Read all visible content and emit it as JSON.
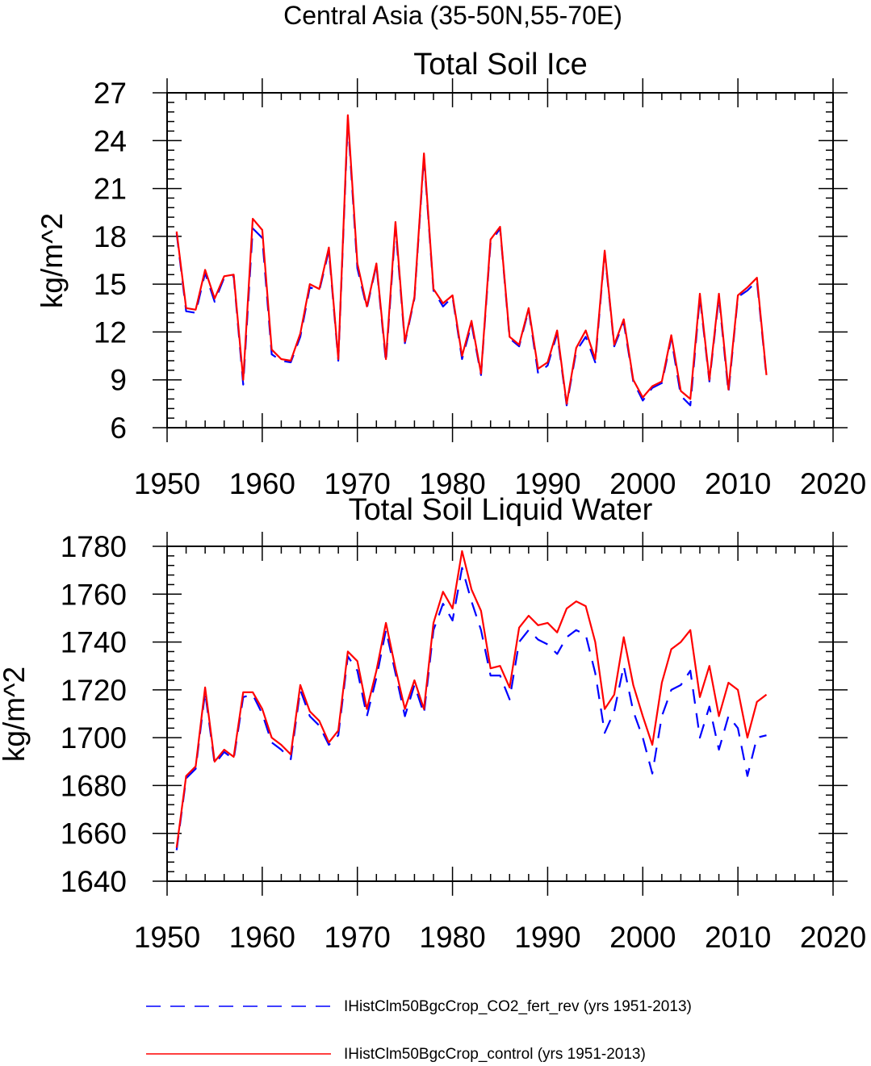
{
  "figure": {
    "title": "Central Asia (35-50N,55-70E)"
  },
  "legend": [
    {
      "label": "IHistClm50BgcCrop_CO2_fert_rev (yrs 1951-2013)",
      "color": "#0000ff",
      "dash": "dashed"
    },
    {
      "label": "IHistClm50BgcCrop_control (yrs 1951-2013)",
      "color": "#ff0000",
      "dash": "solid"
    }
  ],
  "chart_data": [
    {
      "type": "line",
      "title": "Total Soil Ice",
      "xlabel": "",
      "ylabel": "kg/m^2",
      "xlim": [
        1950,
        2020
      ],
      "ylim": [
        6,
        27
      ],
      "xticks": [
        1950,
        1960,
        1970,
        1980,
        1990,
        2000,
        2010,
        2020
      ],
      "yticks": [
        6,
        9,
        12,
        15,
        18,
        21,
        24,
        27
      ],
      "x": [
        1951,
        1952,
        1953,
        1954,
        1955,
        1956,
        1957,
        1958,
        1959,
        1960,
        1961,
        1962,
        1963,
        1964,
        1965,
        1966,
        1967,
        1968,
        1969,
        1970,
        1971,
        1972,
        1973,
        1974,
        1975,
        1976,
        1977,
        1978,
        1979,
        1980,
        1981,
        1982,
        1983,
        1984,
        1985,
        1986,
        1987,
        1988,
        1989,
        1990,
        1991,
        1992,
        1993,
        1994,
        1995,
        1996,
        1997,
        1998,
        1999,
        2000,
        2001,
        2002,
        2003,
        2004,
        2005,
        2006,
        2007,
        2008,
        2009,
        2010,
        2011,
        2012,
        2013
      ],
      "series": [
        {
          "name": "IHistClm50BgcCrop_CO2_fert_rev (yrs 1951-2013)",
          "color": "#0000ff",
          "dash": "dashed",
          "values": [
            18.2,
            13.3,
            13.2,
            15.7,
            13.9,
            15.4,
            15.5,
            8.7,
            18.5,
            17.9,
            10.6,
            10.2,
            10.1,
            11.7,
            14.8,
            14.6,
            17.1,
            10.2,
            25.3,
            16.0,
            13.5,
            16.2,
            10.1,
            18.6,
            11.3,
            14.1,
            23.0,
            14.6,
            13.6,
            14.2,
            10.3,
            12.5,
            9.3,
            17.6,
            18.5,
            11.6,
            11.1,
            13.4,
            9.4,
            9.9,
            11.9,
            7.4,
            10.8,
            11.7,
            10.1,
            17.0,
            11.1,
            12.6,
            8.9,
            7.7,
            8.5,
            8.8,
            11.6,
            8.0,
            7.4,
            14.2,
            8.9,
            14.2,
            8.2,
            14.2,
            14.6,
            15.2,
            9.2
          ]
        },
        {
          "name": "IHistClm50BgcCrop_control (yrs 1951-2013)",
          "color": "#ff0000",
          "dash": "solid",
          "values": [
            18.3,
            13.5,
            13.4,
            15.9,
            14.1,
            15.5,
            15.6,
            9.0,
            19.1,
            18.4,
            10.9,
            10.3,
            10.2,
            11.9,
            15.0,
            14.7,
            17.3,
            10.3,
            25.6,
            16.3,
            13.6,
            16.3,
            10.3,
            18.9,
            11.4,
            14.2,
            23.2,
            14.7,
            13.8,
            14.3,
            10.5,
            12.7,
            9.4,
            17.8,
            18.6,
            11.7,
            11.2,
            13.5,
            9.7,
            10.1,
            12.1,
            7.5,
            11.0,
            12.1,
            10.3,
            17.1,
            11.2,
            12.8,
            9.0,
            7.9,
            8.6,
            8.9,
            11.8,
            8.3,
            7.8,
            14.4,
            9.0,
            14.4,
            8.4,
            14.3,
            14.8,
            15.4,
            9.3
          ]
        }
      ]
    },
    {
      "type": "line",
      "title": "Total Soil Liquid Water",
      "xlabel": "",
      "ylabel": "kg/m^2",
      "xlim": [
        1950,
        2020
      ],
      "ylim": [
        1640,
        1780
      ],
      "xticks": [
        1950,
        1960,
        1970,
        1980,
        1990,
        2000,
        2010,
        2020
      ],
      "yticks": [
        1640,
        1660,
        1680,
        1700,
        1720,
        1740,
        1760,
        1780
      ],
      "x": [
        1951,
        1952,
        1953,
        1954,
        1955,
        1956,
        1957,
        1958,
        1959,
        1960,
        1961,
        1962,
        1963,
        1964,
        1965,
        1966,
        1967,
        1968,
        1969,
        1970,
        1971,
        1972,
        1973,
        1974,
        1975,
        1976,
        1977,
        1978,
        1979,
        1980,
        1981,
        1982,
        1983,
        1984,
        1985,
        1986,
        1987,
        1988,
        1989,
        1990,
        1991,
        1992,
        1993,
        1994,
        1995,
        1996,
        1997,
        1998,
        1999,
        2000,
        2001,
        2002,
        2003,
        2004,
        2005,
        2006,
        2007,
        2008,
        2009,
        2010,
        2011,
        2012,
        2013
      ],
      "series": [
        {
          "name": "IHistClm50BgcCrop_CO2_fert_rev (yrs 1951-2013)",
          "color": "#0000ff",
          "dash": "dashed",
          "values": [
            1653,
            1683,
            1687,
            1719,
            1689,
            1694,
            1691,
            1717,
            1718,
            1710,
            1698,
            1695,
            1691,
            1720,
            1709,
            1705,
            1697,
            1701,
            1734,
            1728,
            1709,
            1725,
            1745,
            1727,
            1709,
            1722,
            1710,
            1745,
            1756,
            1749,
            1771,
            1757,
            1745,
            1726,
            1726,
            1716,
            1740,
            1745,
            1741,
            1739,
            1735,
            1742,
            1745,
            1743,
            1727,
            1702,
            1711,
            1730,
            1711,
            1700,
            1685,
            1709,
            1720,
            1722,
            1728,
            1700,
            1713,
            1695,
            1709,
            1704,
            1684,
            1700,
            1701
          ]
        },
        {
          "name": "IHistClm50BgcCrop_control (yrs 1951-2013)",
          "color": "#ff0000",
          "dash": "solid",
          "values": [
            1654,
            1684,
            1688,
            1721,
            1690,
            1695,
            1692,
            1719,
            1719,
            1712,
            1700,
            1697,
            1693,
            1722,
            1711,
            1707,
            1698,
            1703,
            1736,
            1732,
            1712,
            1728,
            1748,
            1729,
            1712,
            1724,
            1712,
            1748,
            1761,
            1754,
            1778,
            1762,
            1753,
            1729,
            1730,
            1721,
            1746,
            1751,
            1747,
            1748,
            1744,
            1754,
            1757,
            1755,
            1740,
            1712,
            1718,
            1742,
            1722,
            1709,
            1697,
            1723,
            1737,
            1740,
            1745,
            1717,
            1730,
            1709,
            1723,
            1720,
            1700,
            1715,
            1718
          ]
        }
      ]
    }
  ]
}
